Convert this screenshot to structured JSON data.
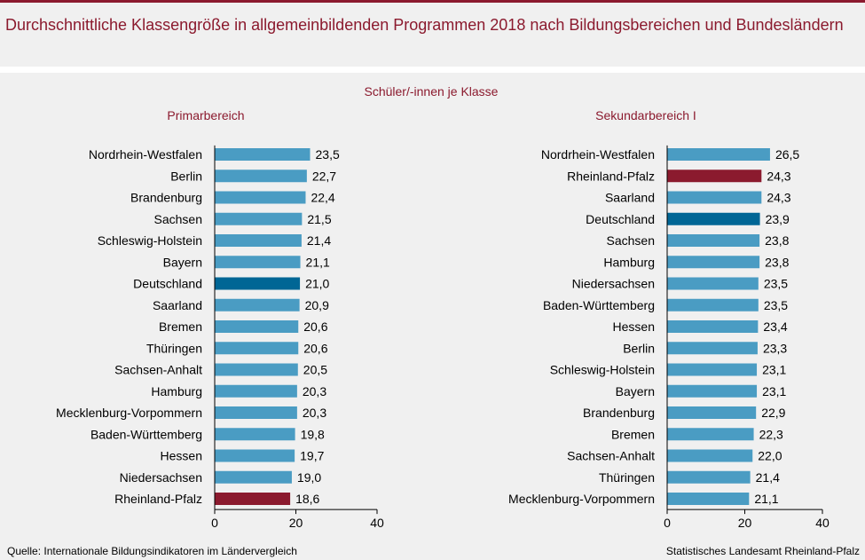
{
  "title": "Durchschnittliche Klassengröße in allgemeinbildenden Programmen 2018 nach Bildungsbereichen und Bundesländern",
  "subtitle": "Schüler/-innen  je Klasse",
  "source_left": "Quelle:  Internationale  Bildungsindikatoren  im Ländervergleich",
  "source_right": "Statistisches Landesamt  Rheinland-Pfalz",
  "colors": {
    "bar": "#4a9cc3",
    "germany": "#006695",
    "rlp": "#8b1a2e",
    "title": "#8b1a2e"
  },
  "chart_data": [
    {
      "type": "bar",
      "orientation": "horizontal",
      "title": "Primarbereich",
      "xlim": [
        0,
        40
      ],
      "xticks": [
        0,
        20,
        40
      ],
      "categories": [
        "Nordrhein-Westfalen",
        "Berlin",
        "Brandenburg",
        "Sachsen",
        "Schleswig-Holstein",
        "Bayern",
        "Deutschland",
        "Saarland",
        "Bremen",
        "Thüringen",
        "Sachsen-Anhalt",
        "Hamburg",
        "Mecklenburg-Vorpommern",
        "Baden-Württemberg",
        "Hessen",
        "Niedersachsen",
        "Rheinland-Pfalz"
      ],
      "values": [
        23.5,
        22.7,
        22.4,
        21.5,
        21.4,
        21.1,
        21.0,
        20.9,
        20.6,
        20.6,
        20.5,
        20.3,
        20.3,
        19.8,
        19.7,
        19.0,
        18.6
      ],
      "labels": [
        "23,5",
        "22,7",
        "22,4",
        "21,5",
        "21,4",
        "21,1",
        "21,0",
        "20,9",
        "20,6",
        "20,6",
        "20,5",
        "20,3",
        "20,3",
        "19,8",
        "19,7",
        "19,0",
        "18,6"
      ]
    },
    {
      "type": "bar",
      "orientation": "horizontal",
      "title": "Sekundarbereich I",
      "xlim": [
        0,
        40
      ],
      "xticks": [
        0,
        20,
        40
      ],
      "categories": [
        "Nordrhein-Westfalen",
        "Rheinland-Pfalz",
        "Saarland",
        "Deutschland",
        "Sachsen",
        "Hamburg",
        "Niedersachsen",
        "Baden-Württemberg",
        "Hessen",
        "Berlin",
        "Schleswig-Holstein",
        "Bayern",
        "Brandenburg",
        "Bremen",
        "Sachsen-Anhalt",
        "Thüringen",
        "Mecklenburg-Vorpommern"
      ],
      "values": [
        26.5,
        24.3,
        24.3,
        23.9,
        23.8,
        23.8,
        23.5,
        23.5,
        23.4,
        23.3,
        23.1,
        23.1,
        22.9,
        22.3,
        22.0,
        21.4,
        21.1
      ],
      "labels": [
        "26,5",
        "24,3",
        "24,3",
        "23,9",
        "23,8",
        "23,8",
        "23,5",
        "23,5",
        "23,4",
        "23,3",
        "23,1",
        "23,1",
        "22,9",
        "22,3",
        "22,0",
        "21,4",
        "21,1"
      ]
    }
  ]
}
